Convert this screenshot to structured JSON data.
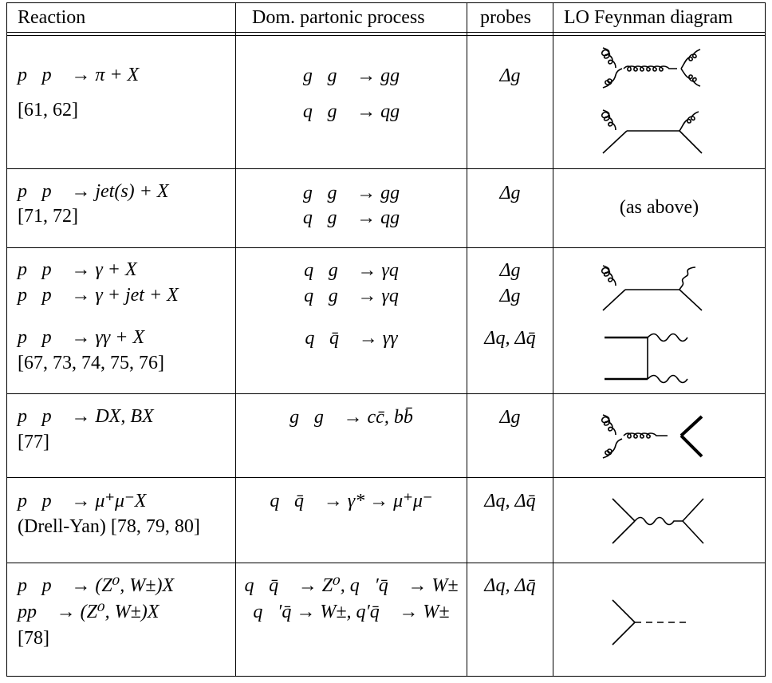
{
  "headers": {
    "reaction": "Reaction",
    "process": "Dom. partonic process",
    "probes": "probes",
    "diagram": "LO Feynman diagram"
  },
  "rows": [
    {
      "reaction": [
        "p⃗p⃗ → π + X",
        "[61, 62]"
      ],
      "process": [
        "g⃗g⃗ → gg",
        "q⃗g⃗ → qg"
      ],
      "probes": [
        "Δg"
      ],
      "diagram_note": ""
    },
    {
      "reaction": [
        "p⃗p⃗ → jet(s) + X",
        "[71, 72]"
      ],
      "process": [
        "g⃗g⃗ → gg",
        "q⃗g⃗ → qg"
      ],
      "probes": [
        "Δg"
      ],
      "diagram_note": "(as above)"
    },
    {
      "reaction": [
        "p⃗p⃗ → γ + X",
        "p⃗p⃗ → γ + jet + X",
        "p⃗p⃗ → γγ + X",
        "[67, 73, 74, 75, 76]"
      ],
      "process": [
        "q⃗g⃗ → γq",
        "q⃗g⃗ → γq",
        "q⃗q̄⃗ → γγ"
      ],
      "probes": [
        "Δg",
        "Δg",
        "Δq, Δq̄"
      ],
      "diagram_note": ""
    },
    {
      "reaction": [
        "p⃗p⃗ → DX, BX",
        "[77]"
      ],
      "process": [
        "g⃗g⃗ → cc̄, bb̄"
      ],
      "probes": [
        "Δg"
      ],
      "diagram_note": ""
    },
    {
      "reaction": [
        "p⃗p⃗ → μ⁺μ⁻X",
        "(Drell-Yan) [78, 79, 80]"
      ],
      "process": [
        "q⃗q̄⃗ → γ* → μ⁺μ⁻"
      ],
      "probes": [
        "Δq, Δq̄"
      ],
      "diagram_note": ""
    },
    {
      "reaction": [
        "p⃗p⃗ → (Z⁰, W±)X",
        "pp⃗ → (Z⁰, W±)X",
        "[78]"
      ],
      "process": [
        "q⃗q̄⃗ → Z⁰, q⃗′q̄⃗ → W±",
        "q⃗′q̄ → W±, q′q̄⃗ → W±"
      ],
      "probes": [
        "Δq, Δq̄"
      ],
      "diagram_note": ""
    }
  ]
}
